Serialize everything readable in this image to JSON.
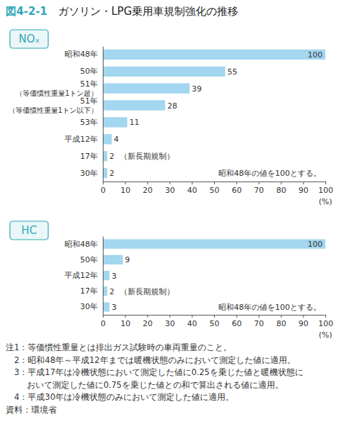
{
  "figure_number": "図4-2-1",
  "figure_title": "ガソリン・LPG乗用車規制強化の推移",
  "chart_data": [
    {
      "type": "bar",
      "orientation": "horizontal",
      "title": "NOₓ",
      "categories": [
        "昭和48年",
        "50年",
        "51年\n（等価慣性重量1トン超）",
        "51年\n（等価慣性重量1トン以下）",
        "53年",
        "平成12年",
        "17年",
        "30年"
      ],
      "values": [
        100,
        55,
        39,
        28,
        11,
        4,
        2,
        2
      ],
      "color": "#a3d6ef",
      "data_labels": true,
      "grid": false,
      "xlim": [
        0,
        100
      ],
      "xticks": [
        0,
        10,
        20,
        30,
        40,
        50,
        60,
        70,
        80,
        90,
        100
      ],
      "xlabel": "(%)",
      "annotations": [
        {
          "text": "（新長期規制）",
          "category": "17年"
        },
        {
          "text": "昭和48年の値を100とする。"
        }
      ]
    },
    {
      "type": "bar",
      "orientation": "horizontal",
      "title": "HC",
      "categories": [
        "昭和48年",
        "50年",
        "平成12年",
        "17年",
        "30年"
      ],
      "values": [
        100,
        9,
        3,
        2,
        3
      ],
      "color": "#a3d6ef",
      "data_labels": true,
      "grid": false,
      "xlim": [
        0,
        100
      ],
      "xticks": [
        0,
        10,
        20,
        30,
        40,
        50,
        60,
        70,
        80,
        90,
        100
      ],
      "xlabel": "(%)",
      "annotations": [
        {
          "text": "（新長期規制）",
          "category": "17年"
        },
        {
          "text": "昭和48年の値を100とする。"
        }
      ]
    }
  ],
  "notes": [
    "注1：等価慣性重量とは排出ガス試験時の車両重量のこと。",
    "2：昭和48年～平成12年までは暖機状態のみにおいて測定した値に適用。",
    "3：平成17年は冷機状態において測定した値に0.25を乗じた値と暖機状態に\nおいて測定した値に0.75を乗じた値との和で算出される値に適用。",
    "4：平成30年は冷機状態のみにおいて測定した値に適用。"
  ],
  "source": "資料：環境省"
}
